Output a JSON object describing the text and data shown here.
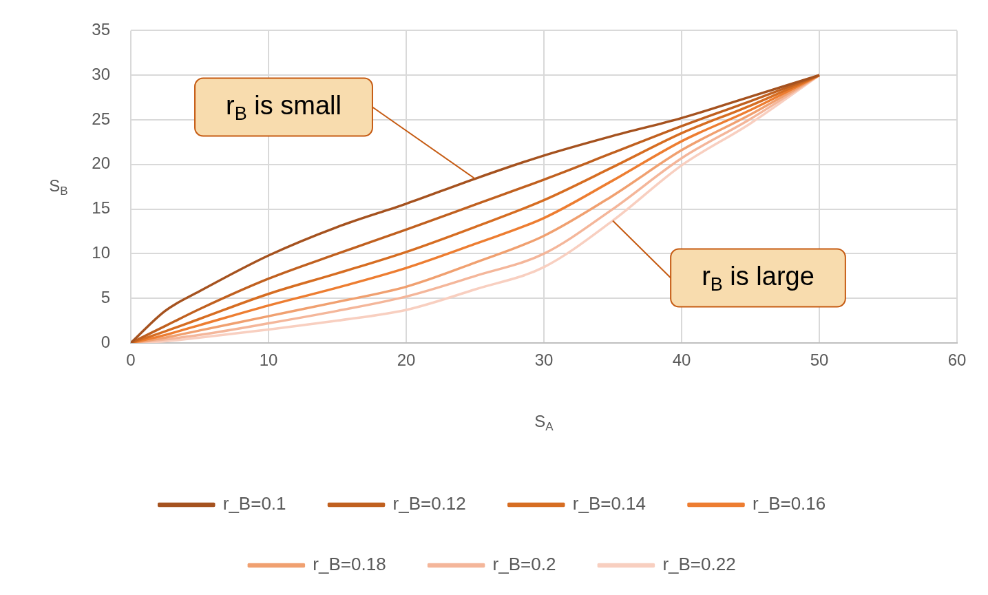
{
  "chart_data": {
    "type": "line",
    "xlabel": "S$_{A}$",
    "ylabel": "S$_{B}$",
    "xlim": [
      0,
      60
    ],
    "xticks": [
      0,
      10,
      20,
      30,
      40,
      50,
      60
    ],
    "ylim": [
      0,
      35
    ],
    "yticks": [
      0,
      5,
      10,
      15,
      20,
      25,
      30,
      35
    ],
    "grid": true,
    "legend": "bottom",
    "marker": "none",
    "line_style": "solid",
    "x": [
      0,
      2.5,
      5,
      10,
      15,
      20,
      25,
      30,
      35,
      40,
      45,
      50
    ],
    "series": [
      {
        "name": "r_B=0.1",
        "color": "#a5521f",
        "values": [
          0,
          3.6,
          5.8,
          9.8,
          13,
          15.6,
          18.4,
          21,
          23.2,
          25.2,
          27.6,
          30
        ]
      },
      {
        "name": "r_B=0.12",
        "color": "#c0601f",
        "values": [
          0,
          1.9,
          3.8,
          7.2,
          10,
          12.7,
          15.5,
          18.3,
          21.3,
          24.3,
          27.1,
          30
        ]
      },
      {
        "name": "r_B=0.14",
        "color": "#d66d22",
        "values": [
          0,
          1.3,
          2.7,
          5.5,
          7.8,
          10.2,
          13,
          16,
          19.7,
          23.5,
          26.6,
          30
        ]
      },
      {
        "name": "r_B=0.16",
        "color": "#ed7d31",
        "values": [
          0,
          0.9,
          2,
          4.2,
          6.2,
          8.4,
          11.1,
          14,
          18.2,
          22.6,
          26.1,
          30
        ]
      },
      {
        "name": "r_B=0.18",
        "color": "#f0a070",
        "values": [
          0,
          0.6,
          1.4,
          3,
          4.6,
          6.3,
          9,
          12,
          16.5,
          21.6,
          25.6,
          30
        ]
      },
      {
        "name": "r_B=0.2",
        "color": "#f4b69a",
        "values": [
          0,
          0.4,
          0.9,
          2.2,
          3.6,
          5.2,
          7.5,
          10,
          15,
          20.7,
          25.1,
          30
        ]
      },
      {
        "name": "r_B=0.22",
        "color": "#f8cfc0",
        "values": [
          0,
          0.2,
          0.6,
          1.5,
          2.5,
          3.7,
          6,
          8.5,
          13.7,
          19.9,
          24.6,
          30
        ]
      }
    ],
    "annotations": [
      {
        "text": "r$_{B}$ is small",
        "x": 25,
        "y": 18.4
      },
      {
        "text": "r$_{B}$ is large",
        "x": 35,
        "y": 13.7
      }
    ]
  }
}
